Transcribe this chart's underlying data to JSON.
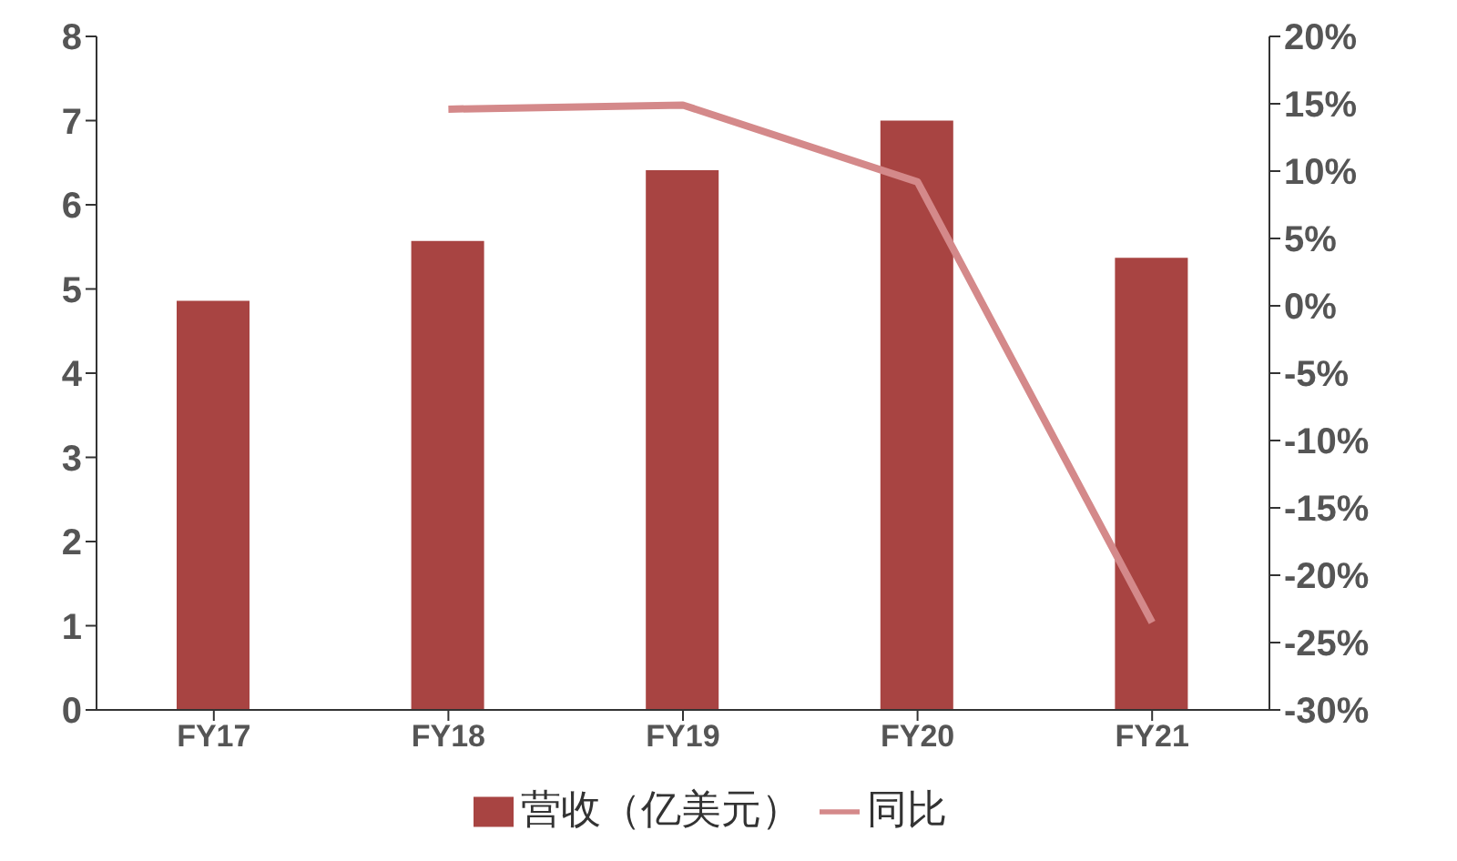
{
  "chart_data": {
    "type": "bar",
    "categories": [
      "FY17",
      "FY18",
      "FY19",
      "FY20",
      "FY21"
    ],
    "series": [
      {
        "name": "营收（亿美元）",
        "color": "#a84442",
        "values": [
          4.86,
          5.57,
          6.41,
          7.0,
          5.37
        ]
      },
      {
        "name": "同比",
        "type": "line",
        "axis": "y2",
        "color": "#d4898a",
        "values": [
          null,
          14.6,
          14.9,
          9.2,
          -23.5
        ]
      }
    ],
    "ylim": [
      0,
      8
    ],
    "yticks": [
      0,
      1,
      2,
      3,
      4,
      5,
      6,
      7,
      8
    ],
    "y2lim": [
      -30,
      20
    ],
    "y2ticks": [
      {
        "value": -30,
        "label": "-30%"
      },
      {
        "value": -25,
        "label": "-25%"
      },
      {
        "value": -20,
        "label": "-20%"
      },
      {
        "value": -15,
        "label": "-15%"
      },
      {
        "value": -10,
        "label": "-10%"
      },
      {
        "value": -5,
        "label": "-5%"
      },
      {
        "value": 0,
        "label": "0%"
      },
      {
        "value": 5,
        "label": "5%"
      },
      {
        "value": 10,
        "label": "10%"
      },
      {
        "value": 15,
        "label": "15%"
      },
      {
        "value": 20,
        "label": "20%"
      }
    ],
    "legend": "bottom",
    "marker": "none"
  }
}
